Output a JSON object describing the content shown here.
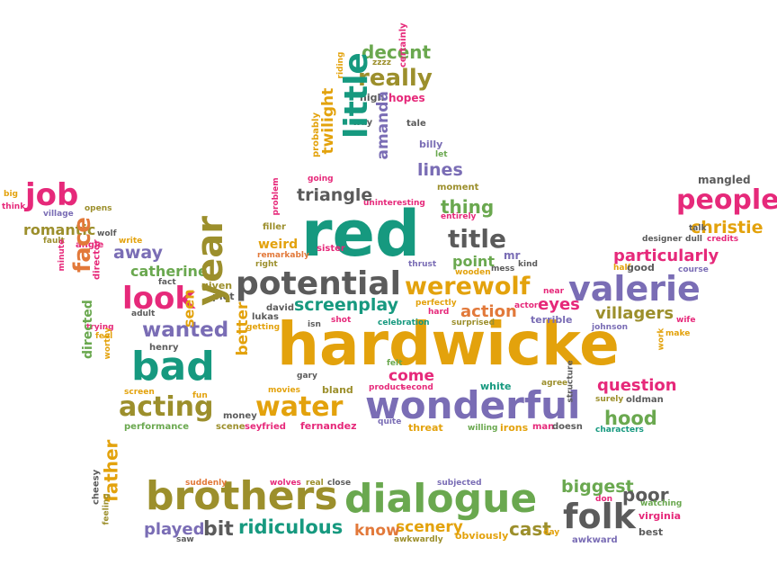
{
  "colors": {
    "green": "#6aa84f",
    "teal": "#16997f",
    "pink": "#e6297a",
    "gold": "#e3a20c",
    "purple": "#7a6db5",
    "gray": "#5b5b5b",
    "olive": "#9c8f2c",
    "orange": "#e2793a",
    "dgreen": "#3e8f36"
  },
  "words": [
    {
      "text": "hardwicke",
      "color": "#e3a20c"
    },
    {
      "text": "red",
      "color": "#16997f"
    },
    {
      "text": "brothers",
      "color": "#9c8f2c"
    },
    {
      "text": "dialogue",
      "color": "#6aa84f"
    },
    {
      "text": "wonderful",
      "color": "#7a6db5"
    },
    {
      "text": "potential",
      "color": "#5b5b5b"
    },
    {
      "text": "valerie",
      "color": "#7a6db5"
    },
    {
      "text": "bad",
      "color": "#16997f"
    },
    {
      "text": "year",
      "color": "#9c8f2c"
    },
    {
      "text": "little",
      "color": "#16997f"
    },
    {
      "text": "folk",
      "color": "#5b5b5b"
    },
    {
      "text": "look",
      "color": "#e6297a"
    },
    {
      "text": "acting",
      "color": "#9c8f2c"
    },
    {
      "text": "water",
      "color": "#e3a20c"
    },
    {
      "text": "werewolf",
      "color": "#e3a20c"
    },
    {
      "text": "people",
      "color": "#e6297a"
    },
    {
      "text": "job",
      "color": "#e6297a"
    },
    {
      "text": "title",
      "color": "#5b5b5b"
    },
    {
      "text": "screenplay",
      "color": "#16997f"
    },
    {
      "text": "face",
      "color": "#e2793a"
    },
    {
      "text": "wanted",
      "color": "#7a6db5"
    },
    {
      "text": "really",
      "color": "#9c8f2c"
    },
    {
      "text": "christie",
      "color": "#e3a20c"
    },
    {
      "text": "particularly",
      "color": "#e6297a"
    },
    {
      "text": "ridiculous",
      "color": "#16997f"
    },
    {
      "text": "played",
      "color": "#7a6db5"
    },
    {
      "text": "bit",
      "color": "#5b5b5b"
    },
    {
      "text": "father",
      "color": "#e3a20c"
    },
    {
      "text": "biggest",
      "color": "#6aa84f"
    },
    {
      "text": "poor",
      "color": "#5b5b5b"
    },
    {
      "text": "cast",
      "color": "#9c8f2c"
    },
    {
      "text": "scenery",
      "color": "#e3a20c"
    },
    {
      "text": "know",
      "color": "#e2793a"
    },
    {
      "text": "hood",
      "color": "#6aa84f"
    },
    {
      "text": "question",
      "color": "#e6297a"
    },
    {
      "text": "villagers",
      "color": "#9c8f2c"
    },
    {
      "text": "decent",
      "color": "#6aa84f"
    },
    {
      "text": "triangle",
      "color": "#5b5b5b"
    },
    {
      "text": "twilight",
      "color": "#e3a20c"
    },
    {
      "text": "amanda",
      "color": "#7a6db5"
    },
    {
      "text": "lines",
      "color": "#7a6db5"
    },
    {
      "text": "thing",
      "color": "#6aa84f"
    },
    {
      "text": "catherine",
      "color": "#6aa84f"
    },
    {
      "text": "away",
      "color": "#7a6db5"
    },
    {
      "text": "romantic",
      "color": "#9c8f2c"
    },
    {
      "text": "better",
      "color": "#e3a20c"
    },
    {
      "text": "seen",
      "color": "#e3a20c"
    },
    {
      "text": "action",
      "color": "#e2793a"
    },
    {
      "text": "eyes",
      "color": "#e6297a"
    },
    {
      "text": "point",
      "color": "#6aa84f"
    },
    {
      "text": "come",
      "color": "#e6297a"
    },
    {
      "text": "directed",
      "color": "#6aa84f"
    },
    {
      "text": "weird",
      "color": "#e3a20c"
    },
    {
      "text": "mangled",
      "color": "#5b5b5b"
    },
    {
      "text": "hopes",
      "color": "#e6297a"
    },
    {
      "text": "high",
      "color": "#5b5b5b"
    },
    {
      "text": "zzzz",
      "color": "#9c8f2c"
    },
    {
      "text": "riding",
      "color": "#e3a20c"
    },
    {
      "text": "certainly",
      "color": "#e6297a"
    },
    {
      "text": "way",
      "color": "#5b5b5b"
    },
    {
      "text": "tale",
      "color": "#5b5b5b"
    },
    {
      "text": "billy",
      "color": "#7a6db5"
    },
    {
      "text": "let",
      "color": "#6aa84f"
    },
    {
      "text": "moment",
      "color": "#9c8f2c"
    },
    {
      "text": "going",
      "color": "#e6297a"
    },
    {
      "text": "probably",
      "color": "#e3a20c"
    },
    {
      "text": "uninteresting",
      "color": "#e6297a"
    },
    {
      "text": "entirely",
      "color": "#e6297a"
    },
    {
      "text": "filler",
      "color": "#9c8f2c"
    },
    {
      "text": "problem",
      "color": "#e6297a"
    },
    {
      "text": "sister",
      "color": "#e6297a"
    },
    {
      "text": "remarkably",
      "color": "#e2793a"
    },
    {
      "text": "right",
      "color": "#9c8f2c"
    },
    {
      "text": "mr",
      "color": "#7a6db5"
    },
    {
      "text": "kind",
      "color": "#5b5b5b"
    },
    {
      "text": "mess",
      "color": "#5b5b5b"
    },
    {
      "text": "thrust",
      "color": "#7a6db5"
    },
    {
      "text": "wooden",
      "color": "#e3a20c"
    },
    {
      "text": "talk",
      "color": "#5b5b5b"
    },
    {
      "text": "designer",
      "color": "#5b5b5b"
    },
    {
      "text": "dull",
      "color": "#5b5b5b"
    },
    {
      "text": "credits",
      "color": "#e6297a"
    },
    {
      "text": "big",
      "color": "#e3a20c"
    },
    {
      "text": "think",
      "color": "#e6297a"
    },
    {
      "text": "village",
      "color": "#7a6db5"
    },
    {
      "text": "opens",
      "color": "#9c8f2c"
    },
    {
      "text": "fault",
      "color": "#9c8f2c"
    },
    {
      "text": "wolf",
      "color": "#5b5b5b"
    },
    {
      "text": "angle",
      "color": "#e6297a"
    },
    {
      "text": "write",
      "color": "#e3a20c"
    },
    {
      "text": "minute",
      "color": "#e6297a"
    },
    {
      "text": "director",
      "color": "#e6297a"
    },
    {
      "text": "fact",
      "color": "#5b5b5b"
    },
    {
      "text": "given",
      "color": "#9c8f2c"
    },
    {
      "text": "plot",
      "color": "#5b5b5b"
    },
    {
      "text": "adult",
      "color": "#5b5b5b"
    },
    {
      "text": "trying",
      "color": "#e6297a"
    },
    {
      "text": "feel",
      "color": "#e3a20c"
    },
    {
      "text": "henry",
      "color": "#5b5b5b"
    },
    {
      "text": "worthy",
      "color": "#e3a20c"
    },
    {
      "text": "screen",
      "color": "#e3a20c"
    },
    {
      "text": "fun",
      "color": "#e3a20c"
    },
    {
      "text": "david",
      "color": "#5b5b5b"
    },
    {
      "text": "lukas",
      "color": "#5b5b5b"
    },
    {
      "text": "getting",
      "color": "#e3a20c"
    },
    {
      "text": "isn",
      "color": "#5b5b5b"
    },
    {
      "text": "shot",
      "color": "#e6297a"
    },
    {
      "text": "celebration",
      "color": "#16997f"
    },
    {
      "text": "perfectly",
      "color": "#e3a20c"
    },
    {
      "text": "hard",
      "color": "#e6297a"
    },
    {
      "text": "surprised",
      "color": "#9c8f2c"
    },
    {
      "text": "actor",
      "color": "#e6297a"
    },
    {
      "text": "near",
      "color": "#e6297a"
    },
    {
      "text": "terrible",
      "color": "#7a6db5"
    },
    {
      "text": "johnson",
      "color": "#7a6db5"
    },
    {
      "text": "half",
      "color": "#e3a20c"
    },
    {
      "text": "good",
      "color": "#5b5b5b"
    },
    {
      "text": "course",
      "color": "#7a6db5"
    },
    {
      "text": "wife",
      "color": "#e6297a"
    },
    {
      "text": "make",
      "color": "#e3a20c"
    },
    {
      "text": "work",
      "color": "#e3a20c"
    },
    {
      "text": "felt",
      "color": "#6aa84f"
    },
    {
      "text": "gary",
      "color": "#5b5b5b"
    },
    {
      "text": "product",
      "color": "#e6297a"
    },
    {
      "text": "second",
      "color": "#e6297a"
    },
    {
      "text": "white",
      "color": "#16997f"
    },
    {
      "text": "agree",
      "color": "#9c8f2c"
    },
    {
      "text": "surely",
      "color": "#9c8f2c"
    },
    {
      "text": "oldman",
      "color": "#5b5b5b"
    },
    {
      "text": "structure",
      "color": "#5b5b5b"
    },
    {
      "text": "characters",
      "color": "#16997f"
    },
    {
      "text": "movies",
      "color": "#e3a20c"
    },
    {
      "text": "bland",
      "color": "#9c8f2c"
    },
    {
      "text": "money",
      "color": "#5b5b5b"
    },
    {
      "text": "scene",
      "color": "#9c8f2c"
    },
    {
      "text": "seyfried",
      "color": "#e6297a"
    },
    {
      "text": "fernandez",
      "color": "#e6297a"
    },
    {
      "text": "quite",
      "color": "#7a6db5"
    },
    {
      "text": "threat",
      "color": "#e3a20c"
    },
    {
      "text": "willing",
      "color": "#6aa84f"
    },
    {
      "text": "irons",
      "color": "#e3a20c"
    },
    {
      "text": "man",
      "color": "#e6297a"
    },
    {
      "text": "doesn",
      "color": "#5b5b5b"
    },
    {
      "text": "performance",
      "color": "#6aa84f"
    },
    {
      "text": "suddenly",
      "color": "#e2793a"
    },
    {
      "text": "wolves",
      "color": "#e6297a"
    },
    {
      "text": "real",
      "color": "#9c8f2c"
    },
    {
      "text": "close",
      "color": "#5b5b5b"
    },
    {
      "text": "subjected",
      "color": "#7a6db5"
    },
    {
      "text": "don",
      "color": "#e6297a"
    },
    {
      "text": "watching",
      "color": "#6aa84f"
    },
    {
      "text": "virginia",
      "color": "#e6297a"
    },
    {
      "text": "best",
      "color": "#5b5b5b"
    },
    {
      "text": "awkward",
      "color": "#7a6db5"
    },
    {
      "text": "day",
      "color": "#e3a20c"
    },
    {
      "text": "obviously",
      "color": "#e3a20c"
    },
    {
      "text": "awkwardly",
      "color": "#9c8f2c"
    },
    {
      "text": "saw",
      "color": "#5b5b5b"
    },
    {
      "text": "cheesy",
      "color": "#5b5b5b"
    },
    {
      "text": "feeling",
      "color": "#9c8f2c"
    }
  ]
}
